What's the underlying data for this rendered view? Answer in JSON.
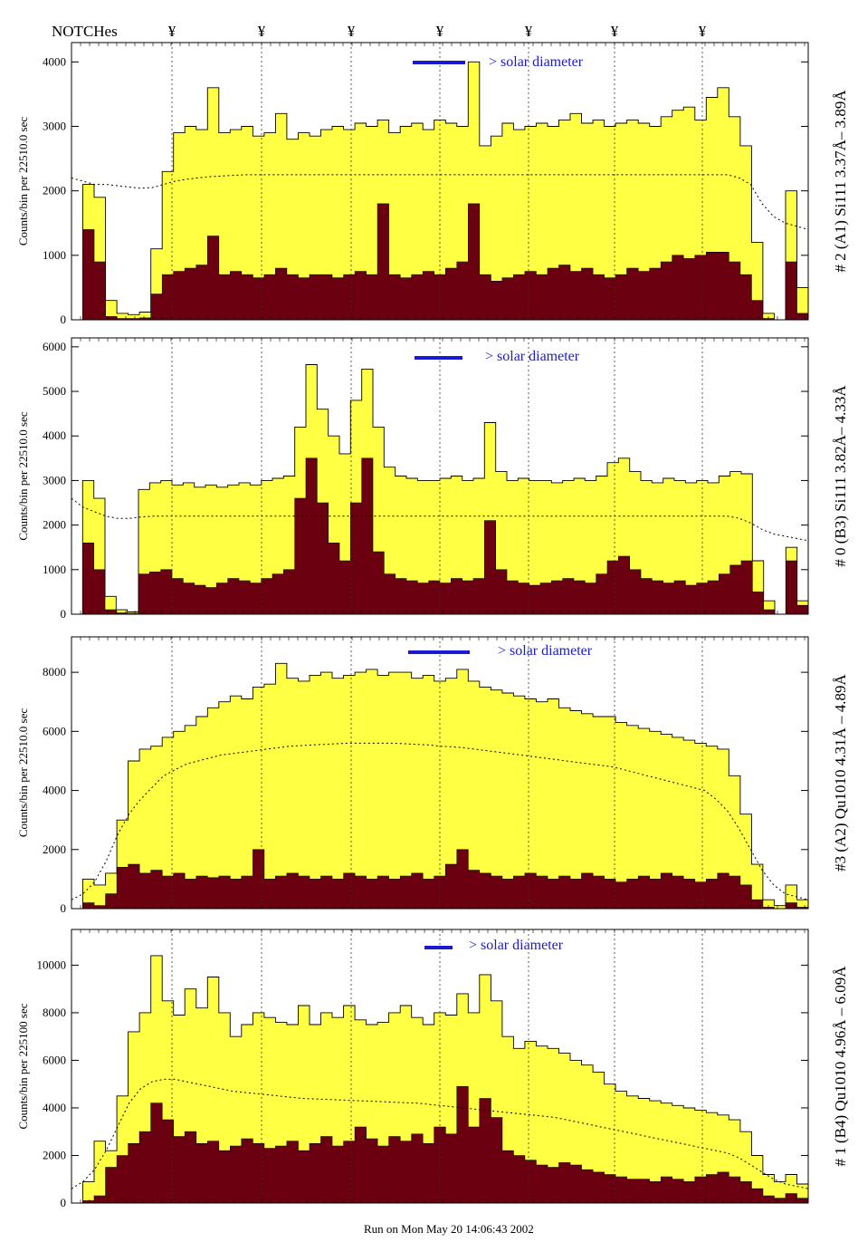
{
  "header": {
    "notches_label": "NOTCHes",
    "notch_mark": "¥"
  },
  "footer": {
    "run_text": "Run on Mon May 20 14:06:43 2002"
  },
  "colors": {
    "total": "#ffff44",
    "background": "#6b0010",
    "solar": "#1a1ad0",
    "outline": "#000000"
  },
  "chart_data": [
    {
      "type": "area",
      "right_label": "# 2 (A1) Si111  3.37Å– 3.89Å",
      "ylabel": "Counts/bin per  22510.0 sec",
      "solar_label": "> solar diameter",
      "ylim": [
        0,
        4300
      ],
      "yticks": [
        0,
        1000,
        2000,
        3000,
        4000
      ],
      "series": [
        {
          "values": [
            0,
            2100,
            1900,
            300,
            100,
            80,
            120,
            1100,
            2300,
            2900,
            3000,
            2950,
            3600,
            2900,
            2950,
            3000,
            2850,
            2900,
            3200,
            2800,
            2900,
            2850,
            2950,
            3000,
            2950,
            3050,
            3000,
            3100,
            2900,
            3000,
            3050,
            2950,
            3100,
            3050,
            3000,
            4000,
            2700,
            2850,
            3050,
            2950,
            3000,
            3050,
            3000,
            3100,
            3200,
            3050,
            3100,
            3000,
            3050,
            3100,
            3050,
            3000,
            3150,
            3250,
            3300,
            3100,
            3450,
            3600,
            3150,
            2700,
            1200,
            100,
            0,
            2000,
            500
          ]
        },
        {
          "values": [
            0,
            1400,
            900,
            50,
            20,
            20,
            30,
            400,
            700,
            750,
            800,
            850,
            1300,
            700,
            750,
            700,
            650,
            700,
            800,
            700,
            650,
            700,
            700,
            650,
            700,
            750,
            700,
            1800,
            700,
            650,
            700,
            750,
            700,
            800,
            900,
            1800,
            700,
            600,
            650,
            700,
            750,
            700,
            800,
            850,
            750,
            800,
            700,
            650,
            700,
            800,
            750,
            800,
            900,
            1000,
            950,
            1000,
            1050,
            1050,
            900,
            700,
            300,
            20,
            0,
            900,
            100
          ]
        },
        {
          "values": [
            2200,
            2150,
            2100,
            2100,
            2080,
            2060,
            2040,
            2050,
            2100,
            2150,
            2180,
            2200,
            2220,
            2230,
            2240,
            2250,
            2250,
            2250,
            2250,
            2250,
            2250,
            2250,
            2250,
            2250,
            2250,
            2250,
            2250,
            2250,
            2250,
            2250,
            2250,
            2250,
            2250,
            2250,
            2250,
            2250,
            2250,
            2250,
            2250,
            2250,
            2250,
            2250,
            2250,
            2250,
            2250,
            2250,
            2250,
            2250,
            2250,
            2250,
            2250,
            2250,
            2250,
            2250,
            2250,
            2250,
            2250,
            2250,
            2200,
            2100,
            1800,
            1600,
            1500,
            1450,
            1400
          ]
        }
      ]
    },
    {
      "type": "area",
      "right_label": "# 0 (B3) Si111  3.82Å– 4.33Å",
      "ylabel": "Counts/bin per  22510.0 sec",
      "solar_label": "> solar diameter",
      "ylim": [
        0,
        6200
      ],
      "yticks": [
        0,
        1000,
        2000,
        3000,
        4000,
        5000,
        6000
      ],
      "series": [
        {
          "values": [
            0,
            3000,
            2600,
            400,
            100,
            50,
            2800,
            2950,
            3000,
            2900,
            2950,
            2850,
            2900,
            2850,
            2900,
            2950,
            2900,
            3000,
            3050,
            3100,
            4200,
            5600,
            4600,
            4000,
            3600,
            4800,
            5500,
            4200,
            3300,
            3100,
            3050,
            3000,
            3000,
            3050,
            3100,
            3000,
            3050,
            4300,
            3200,
            3000,
            3050,
            3000,
            3000,
            2950,
            3000,
            3050,
            3000,
            3100,
            3400,
            3500,
            3200,
            3000,
            2950,
            3050,
            3000,
            2950,
            3000,
            2950,
            3100,
            3200,
            3150,
            1200,
            300,
            0,
            1500,
            300
          ]
        },
        {
          "values": [
            0,
            1600,
            1000,
            100,
            30,
            20,
            900,
            950,
            1000,
            800,
            700,
            650,
            600,
            700,
            800,
            750,
            700,
            800,
            900,
            1000,
            2600,
            3500,
            2500,
            1600,
            1200,
            2500,
            3500,
            1400,
            900,
            800,
            750,
            700,
            750,
            700,
            800,
            750,
            800,
            2100,
            1000,
            750,
            700,
            650,
            700,
            750,
            800,
            750,
            700,
            900,
            1200,
            1300,
            1000,
            800,
            750,
            700,
            750,
            650,
            700,
            750,
            900,
            1100,
            1200,
            500,
            100,
            0,
            1200,
            200
          ]
        },
        {
          "values": [
            2600,
            2400,
            2300,
            2200,
            2150,
            2150,
            2180,
            2200,
            2200,
            2200,
            2200,
            2200,
            2200,
            2200,
            2200,
            2200,
            2200,
            2200,
            2200,
            2200,
            2200,
            2200,
            2200,
            2200,
            2200,
            2200,
            2200,
            2200,
            2200,
            2200,
            2200,
            2200,
            2200,
            2200,
            2200,
            2200,
            2200,
            2200,
            2200,
            2200,
            2200,
            2200,
            2200,
            2200,
            2200,
            2200,
            2200,
            2200,
            2200,
            2200,
            2200,
            2200,
            2200,
            2200,
            2200,
            2200,
            2200,
            2200,
            2150,
            2050,
            1900,
            1800,
            1750,
            1700,
            1650
          ]
        }
      ]
    },
    {
      "type": "area",
      "right_label": "#3 (A2) Qu1010  4.31Å – 4.89Å",
      "ylabel": "Counts/bin per  22510.0 sec",
      "solar_label": "> solar diameter",
      "ylim": [
        0,
        9200
      ],
      "yticks": [
        0,
        2000,
        4000,
        6000,
        8000
      ],
      "series": [
        {
          "values": [
            0,
            1000,
            800,
            1200,
            3000,
            5000,
            5400,
            5500,
            5800,
            6000,
            6200,
            6500,
            6800,
            7000,
            7200,
            7100,
            7500,
            7600,
            8300,
            7800,
            7700,
            7900,
            8000,
            7800,
            7900,
            8000,
            8100,
            7900,
            8000,
            8000,
            7800,
            7900,
            7700,
            7800,
            8100,
            7700,
            7500,
            7400,
            7300,
            7200,
            7100,
            7000,
            7100,
            6800,
            6700,
            6600,
            6500,
            6500,
            6300,
            6200,
            6100,
            6000,
            5900,
            5800,
            5700,
            5600,
            5500,
            5400,
            4500,
            3200,
            1500,
            300,
            100,
            800,
            300
          ]
        },
        {
          "values": [
            0,
            200,
            100,
            500,
            1400,
            1500,
            1200,
            1300,
            1100,
            1200,
            1000,
            1100,
            1050,
            1100,
            1000,
            1100,
            2000,
            1000,
            1100,
            1200,
            1100,
            1000,
            1100,
            1000,
            1200,
            1100,
            1000,
            1100,
            1000,
            1100,
            1200,
            1000,
            1100,
            1500,
            2000,
            1300,
            1200,
            1100,
            1000,
            1100,
            1200,
            1100,
            1000,
            1100,
            1000,
            1200,
            1100,
            1000,
            900,
            1000,
            1100,
            1000,
            1200,
            1100,
            1000,
            900,
            1000,
            1200,
            1100,
            800,
            300,
            50,
            0,
            200,
            50
          ]
        },
        {
          "values": [
            300,
            500,
            900,
            1600,
            2500,
            3200,
            3700,
            4100,
            4500,
            4700,
            4900,
            5000,
            5100,
            5200,
            5250,
            5300,
            5350,
            5400,
            5450,
            5500,
            5520,
            5540,
            5560,
            5580,
            5600,
            5600,
            5600,
            5600,
            5600,
            5580,
            5560,
            5540,
            5500,
            5480,
            5450,
            5400,
            5350,
            5300,
            5250,
            5200,
            5150,
            5100,
            5050,
            5000,
            4950,
            4900,
            4850,
            4800,
            4700,
            4600,
            4500,
            4400,
            4300,
            4200,
            4100,
            4000,
            3700,
            3300,
            2700,
            2000,
            1300,
            800,
            500,
            400,
            300
          ]
        }
      ]
    },
    {
      "type": "area",
      "right_label": "# 1 (B4) Qu1010 4.96Å – 6.09Å",
      "ylabel": "Counts/bin per  225100 sec",
      "solar_label": "> solar diameter",
      "ylim": [
        0,
        11500
      ],
      "yticks": [
        0,
        2000,
        4000,
        6000,
        8000,
        10000
      ],
      "series": [
        {
          "values": [
            0,
            900,
            2600,
            2200,
            4500,
            7200,
            8000,
            10400,
            8500,
            7900,
            9000,
            8200,
            9500,
            8000,
            7000,
            7500,
            8000,
            7800,
            7600,
            7500,
            8300,
            7500,
            8000,
            7800,
            8300,
            7700,
            7500,
            7600,
            8000,
            8300,
            7800,
            7500,
            8000,
            7900,
            8800,
            8000,
            9600,
            8500,
            7000,
            6500,
            6800,
            6600,
            6500,
            6300,
            6000,
            5800,
            5500,
            5000,
            4700,
            4500,
            4400,
            4300,
            4200,
            4100,
            4000,
            3900,
            3800,
            3700,
            3500,
            3000,
            2000,
            1200,
            900,
            1200,
            800
          ]
        },
        {
          "values": [
            0,
            100,
            300,
            1500,
            2000,
            2500,
            3000,
            4200,
            3500,
            2800,
            3000,
            2500,
            2600,
            2200,
            2400,
            2700,
            2500,
            2300,
            2400,
            2600,
            2200,
            2500,
            2800,
            2400,
            2600,
            3200,
            2700,
            2400,
            2800,
            2600,
            2900,
            2500,
            3200,
            2900,
            4900,
            3200,
            4400,
            3600,
            2200,
            2000,
            1800,
            1600,
            1500,
            1700,
            1600,
            1400,
            1300,
            1200,
            1100,
            1000,
            1000,
            900,
            1100,
            1000,
            900,
            1100,
            1200,
            1300,
            1100,
            900,
            600,
            300,
            200,
            400,
            200
          ]
        },
        {
          "values": [
            600,
            900,
            1400,
            2200,
            3200,
            4200,
            4800,
            5100,
            5200,
            5200,
            5100,
            5000,
            4900,
            4800,
            4700,
            4650,
            4600,
            4550,
            4500,
            4450,
            4400,
            4380,
            4360,
            4340,
            4320,
            4300,
            4280,
            4260,
            4240,
            4220,
            4200,
            4150,
            4100,
            4050,
            4000,
            3950,
            3900,
            3850,
            3800,
            3750,
            3700,
            3650,
            3600,
            3500,
            3400,
            3300,
            3200,
            3100,
            3000,
            2900,
            2800,
            2700,
            2600,
            2500,
            2400,
            2300,
            2200,
            2100,
            1900,
            1600,
            1300,
            1000,
            800,
            700,
            600
          ]
        }
      ]
    }
  ]
}
